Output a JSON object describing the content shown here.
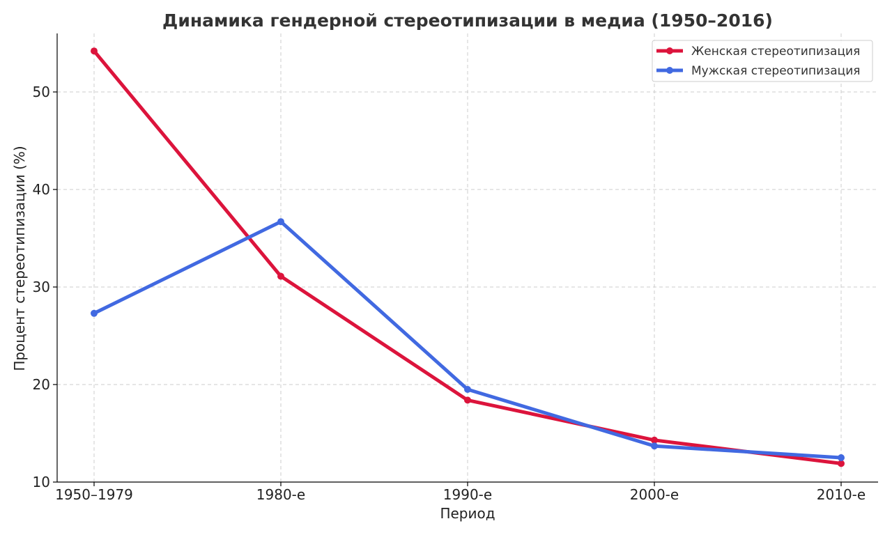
{
  "chart_data": {
    "type": "line",
    "title": "Динамика гендерной стереотипизации в медиа (1950–2016)",
    "xlabel": "Период",
    "ylabel": "Процент стереотипизации (%)",
    "categories": [
      "1950–1979",
      "1980-е",
      "1990-е",
      "2000-е",
      "2010-е"
    ],
    "ylim": [
      10,
      56
    ],
    "yticks": [
      10,
      20,
      30,
      40,
      50
    ],
    "grid": true,
    "legend_position": "top-right",
    "series": [
      {
        "name": "Женская стереотипизация",
        "color": "#dc143c",
        "values": [
          54.2,
          31.1,
          18.4,
          14.3,
          11.9
        ]
      },
      {
        "name": "Мужская стереотипизация",
        "color": "#4169e1",
        "values": [
          27.3,
          36.7,
          19.5,
          13.7,
          12.5
        ]
      }
    ]
  }
}
